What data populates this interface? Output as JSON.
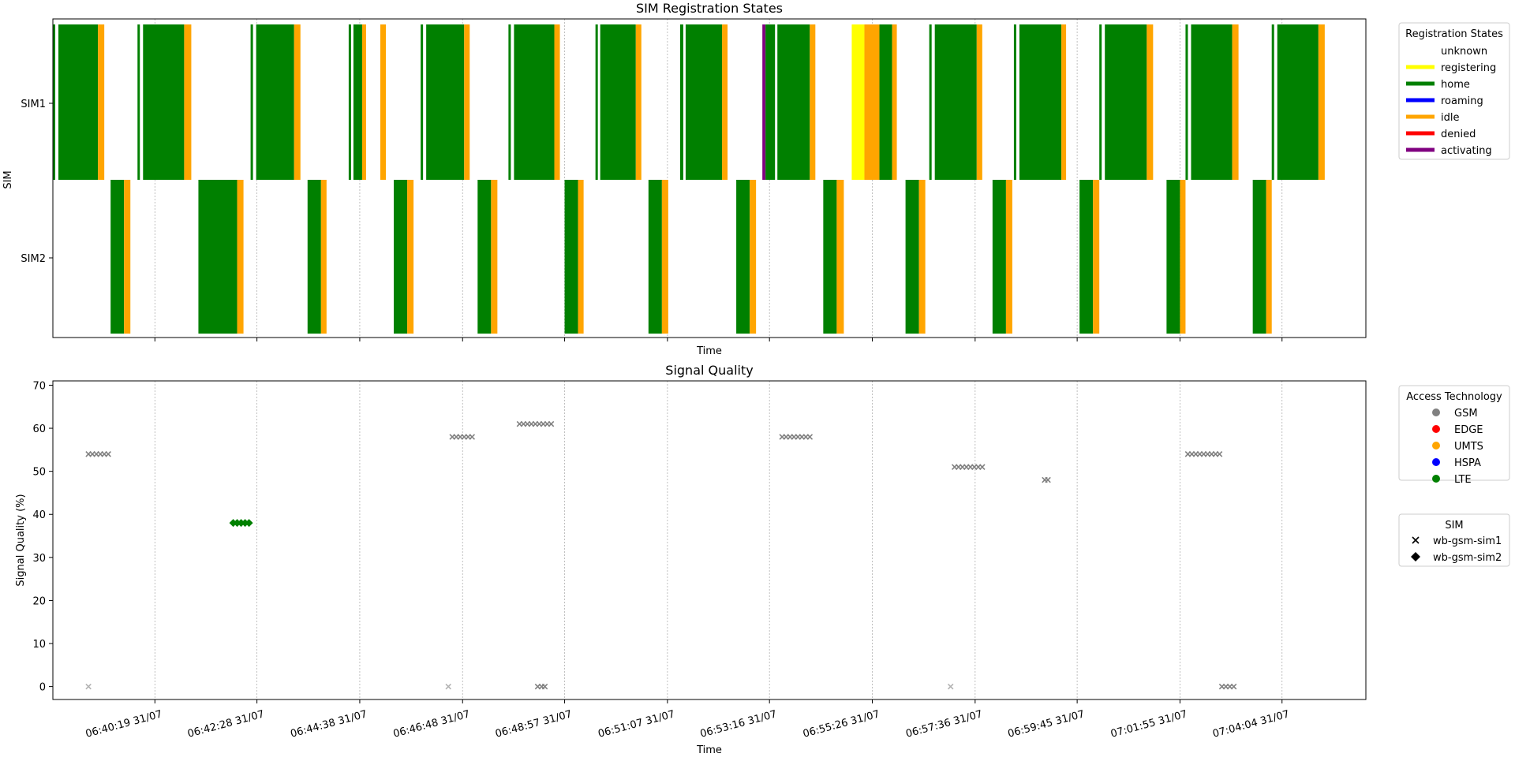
{
  "colors": {
    "unknown": "#ffffff",
    "registering": "#ffff00",
    "home": "#008000",
    "roaming": "#0000ff",
    "idle": "#ffa500",
    "denied": "#ff0000",
    "activating": "#800080",
    "GSM": "#808080",
    "EDGE": "#ff0000",
    "UMTS": "#ffa500",
    "HSPA": "#0000ff",
    "LTE": "#008000"
  },
  "chart_data": [
    {
      "type": "timeline",
      "title": "SIM Registration States",
      "xlabel": "Time",
      "ylabel": "SIM",
      "categories": [
        "SIM1",
        "SIM2"
      ],
      "x_unit": "seconds after 06:38:10 31/07",
      "xlim": [
        0,
        1660
      ],
      "grid": "x only, dotted",
      "legend": {
        "title": "Registration States",
        "placement": "outside upper right",
        "entries": [
          "unknown",
          "registering",
          "home",
          "roaming",
          "idle",
          "denied",
          "activating"
        ]
      },
      "series": [
        {
          "name": "SIM1",
          "segments": [
            [
              0,
              3,
              "home"
            ],
            [
              7,
              57,
              "home"
            ],
            [
              57,
              65,
              "idle"
            ],
            [
              107,
              110,
              "home"
            ],
            [
              114,
              166,
              "home"
            ],
            [
              166,
              175,
              "idle"
            ],
            [
              250,
              253,
              "home"
            ],
            [
              257,
              305,
              "home"
            ],
            [
              305,
              313,
              "idle"
            ],
            [
              374,
              377,
              "home"
            ],
            [
              380,
              391,
              "home"
            ],
            [
              391,
              396,
              "idle"
            ],
            [
              414,
              421,
              "idle"
            ],
            [
              465,
              468,
              "home"
            ],
            [
              472,
              520,
              "home"
            ],
            [
              520,
              527,
              "idle"
            ],
            [
              576,
              579,
              "home"
            ],
            [
              583,
              634,
              "home"
            ],
            [
              634,
              641,
              "idle"
            ],
            [
              686,
              689,
              "home"
            ],
            [
              692,
              737,
              "home"
            ],
            [
              737,
              744,
              "idle"
            ],
            [
              793,
              797,
              "home"
            ],
            [
              800,
              846,
              "home"
            ],
            [
              846,
              853,
              "idle"
            ],
            [
              897,
              901,
              "activating"
            ],
            [
              901,
              913,
              "home"
            ],
            [
              916,
              957,
              "home"
            ],
            [
              957,
              964,
              "idle"
            ],
            [
              1010,
              1026,
              "registering"
            ],
            [
              1026,
              1045,
              "idle"
            ],
            [
              1045,
              1061,
              "home"
            ],
            [
              1061,
              1067,
              "idle"
            ],
            [
              1108,
              1111,
              "home"
            ],
            [
              1115,
              1168,
              "home"
            ],
            [
              1168,
              1175,
              "idle"
            ],
            [
              1215,
              1218,
              "home"
            ],
            [
              1222,
              1275,
              "home"
            ],
            [
              1275,
              1281,
              "idle"
            ],
            [
              1323,
              1326,
              "home"
            ],
            [
              1330,
              1383,
              "home"
            ],
            [
              1383,
              1391,
              "idle"
            ],
            [
              1432,
              1435,
              "home"
            ],
            [
              1439,
              1491,
              "home"
            ],
            [
              1491,
              1499,
              "idle"
            ],
            [
              1541,
              1544,
              "home"
            ],
            [
              1548,
              1600,
              "home"
            ],
            [
              1600,
              1608,
              "idle"
            ]
          ]
        },
        {
          "name": "SIM2",
          "segments": [
            [
              73,
              90,
              "home"
            ],
            [
              90,
              98,
              "idle"
            ],
            [
              184,
              233,
              "home"
            ],
            [
              233,
              241,
              "idle"
            ],
            [
              322,
              339,
              "home"
            ],
            [
              339,
              346,
              "idle"
            ],
            [
              431,
              448,
              "home"
            ],
            [
              448,
              456,
              "idle"
            ],
            [
              537,
              554,
              "home"
            ],
            [
              554,
              562,
              "idle"
            ],
            [
              647,
              664,
              "home"
            ],
            [
              664,
              671,
              "idle"
            ],
            [
              753,
              770,
              "home"
            ],
            [
              770,
              778,
              "idle"
            ],
            [
              864,
              881,
              "home"
            ],
            [
              881,
              889,
              "idle"
            ],
            [
              974,
              991,
              "home"
            ],
            [
              991,
              1000,
              "idle"
            ],
            [
              1078,
              1095,
              "home"
            ],
            [
              1095,
              1103,
              "idle"
            ],
            [
              1188,
              1205,
              "home"
            ],
            [
              1205,
              1213,
              "idle"
            ],
            [
              1298,
              1315,
              "home"
            ],
            [
              1315,
              1323,
              "idle"
            ],
            [
              1408,
              1425,
              "home"
            ],
            [
              1425,
              1432,
              "idle"
            ],
            [
              1517,
              1534,
              "home"
            ],
            [
              1534,
              1541,
              "idle"
            ]
          ]
        }
      ]
    },
    {
      "type": "scatter",
      "title": "Signal Quality",
      "xlabel": "Time",
      "ylabel": "Signal Quality (%)",
      "x_unit": "seconds after 06:38:10 31/07",
      "xlim": [
        0,
        1660
      ],
      "ylim": [
        -3,
        71
      ],
      "yticks": [
        0,
        10,
        20,
        30,
        40,
        50,
        60,
        70
      ],
      "xtick_labels": [
        "06:40:19 31/07",
        "06:42:28 31/07",
        "06:44:38 31/07",
        "06:46:48 31/07",
        "06:48:57 31/07",
        "06:51:07 31/07",
        "06:53:16 31/07",
        "06:55:26 31/07",
        "06:57:36 31/07",
        "06:59:45 31/07",
        "07:01:55 31/07",
        "07:04:04 31/07"
      ],
      "xticks": [
        129,
        258,
        388,
        518,
        647,
        777,
        906,
        1036,
        1166,
        1295,
        1425,
        1554
      ],
      "grid": "x only, dotted",
      "legends": [
        {
          "title": "Access Technology",
          "placement": "outside upper right",
          "entries": [
            "GSM",
            "EDGE",
            "UMTS",
            "HSPA",
            "LTE"
          ]
        },
        {
          "title": "SIM",
          "placement": "outside right",
          "entries": [
            "wb-gsm-sim1",
            "wb-gsm-sim2"
          ]
        }
      ],
      "series": [
        {
          "name": "wb-gsm-sim1",
          "tech": "GSM",
          "marker": "x",
          "points": [
            [
              45,
              0
            ],
            [
              45,
              54
            ],
            [
              50,
              54
            ],
            [
              55,
              54
            ],
            [
              60,
              54
            ],
            [
              65,
              54
            ],
            [
              70,
              54
            ],
            [
              500,
              0
            ],
            [
              505,
              58
            ],
            [
              510,
              58
            ],
            [
              515,
              58
            ],
            [
              520,
              58
            ],
            [
              525,
              58
            ],
            [
              530,
              58
            ],
            [
              590,
              61
            ],
            [
              595,
              61
            ],
            [
              600,
              61
            ],
            [
              605,
              61
            ],
            [
              610,
              61
            ],
            [
              615,
              61
            ],
            [
              620,
              61
            ],
            [
              625,
              61
            ],
            [
              630,
              61
            ],
            [
              922,
              58
            ],
            [
              927,
              58
            ],
            [
              932,
              58
            ],
            [
              937,
              58
            ],
            [
              942,
              58
            ],
            [
              947,
              58
            ],
            [
              952,
              58
            ],
            [
              957,
              58
            ],
            [
              1135,
              0
            ],
            [
              1140,
              51
            ],
            [
              1145,
              51
            ],
            [
              1150,
              51
            ],
            [
              1155,
              51
            ],
            [
              1160,
              51
            ],
            [
              1165,
              51
            ],
            [
              1170,
              51
            ],
            [
              1175,
              51
            ],
            [
              1254,
              48
            ],
            [
              1258,
              48
            ],
            [
              1435,
              54
            ],
            [
              1440,
              54
            ],
            [
              1445,
              54
            ],
            [
              1450,
              54
            ],
            [
              1455,
              54
            ],
            [
              1460,
              54
            ],
            [
              1465,
              54
            ],
            [
              1470,
              54
            ],
            [
              1475,
              54
            ]
          ]
        },
        {
          "name": "wb-gsm-sim1",
          "tech": "GSM",
          "marker": "x",
          "points": [
            [
              613,
              0
            ],
            [
              618,
              0
            ],
            [
              622,
              0
            ],
            [
              1478,
              0
            ],
            [
              1483,
              0
            ],
            [
              1488,
              0
            ],
            [
              1493,
              0
            ]
          ]
        },
        {
          "name": "wb-gsm-sim2",
          "tech": "LTE",
          "marker": "diamond",
          "points": [
            [
              228,
              38
            ],
            [
              233,
              38
            ],
            [
              238,
              38
            ],
            [
              243,
              38
            ],
            [
              248,
              38
            ]
          ]
        }
      ]
    }
  ]
}
